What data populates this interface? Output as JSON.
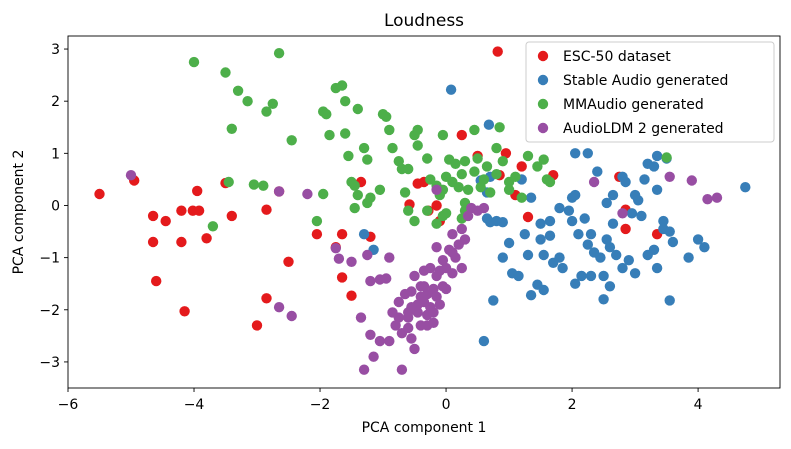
{
  "chart_data": {
    "type": "scatter",
    "title": "Loudness",
    "xlabel": "PCA component 1",
    "ylabel": "PCA component 2",
    "xlim": [
      -6,
      5.3
    ],
    "ylim": [
      -3.5,
      3.25
    ],
    "xticks": [
      -6,
      -4,
      -2,
      0,
      2,
      4
    ],
    "yticks": [
      -3,
      -2,
      -1,
      0,
      1,
      2,
      3
    ],
    "xtick_labels": [
      "−6",
      "−4",
      "−2",
      "0",
      "2",
      "4"
    ],
    "ytick_labels": [
      "−3",
      "−2",
      "−1",
      "0",
      "1",
      "2",
      "3"
    ],
    "legend_position": "top-right",
    "series": [
      {
        "name": "ESC-50 dataset",
        "color": "#e41a1c",
        "points": [
          [
            -5.5,
            0.22
          ],
          [
            -4.95,
            0.48
          ],
          [
            -4.65,
            -0.2
          ],
          [
            -4.45,
            -0.3
          ],
          [
            -4.2,
            -0.1
          ],
          [
            -4.65,
            -0.7
          ],
          [
            -4.2,
            -0.7
          ],
          [
            -4.02,
            -0.1
          ],
          [
            -3.92,
            -0.1
          ],
          [
            -3.95,
            0.28
          ],
          [
            -3.8,
            -0.63
          ],
          [
            -3.5,
            0.43
          ],
          [
            -3.4,
            -0.2
          ],
          [
            -2.85,
            -0.08
          ],
          [
            -2.65,
            0.27
          ],
          [
            -4.6,
            -1.45
          ],
          [
            -4.15,
            -2.03
          ],
          [
            -2.85,
            -1.78
          ],
          [
            -3.0,
            -2.3
          ],
          [
            -2.5,
            -1.08
          ],
          [
            -2.05,
            -0.55
          ],
          [
            -1.75,
            -0.8
          ],
          [
            -1.65,
            -0.55
          ],
          [
            -1.65,
            -1.38
          ],
          [
            -1.5,
            -1.73
          ],
          [
            -1.35,
            0.45
          ],
          [
            -1.2,
            -0.6
          ],
          [
            -0.58,
            0.02
          ],
          [
            -0.45,
            0.42
          ],
          [
            -0.35,
            0.45
          ],
          [
            -0.28,
            -0.1
          ],
          [
            -0.15,
            0.0
          ],
          [
            -0.1,
            -0.3
          ],
          [
            0.25,
            1.35
          ],
          [
            0.5,
            0.95
          ],
          [
            0.85,
            0.58
          ],
          [
            0.95,
            1.0
          ],
          [
            1.2,
            0.75
          ],
          [
            1.1,
            0.2
          ],
          [
            0.82,
            2.95
          ],
          [
            1.7,
            0.58
          ],
          [
            2.75,
            0.55
          ],
          [
            2.85,
            -0.08
          ],
          [
            2.85,
            -0.45
          ],
          [
            3.35,
            -0.55
          ],
          [
            1.3,
            -0.22
          ]
        ]
      },
      {
        "name": "Stable Audio generated",
        "color": "#377eb8",
        "points": [
          [
            0.08,
            2.22
          ],
          [
            -1.3,
            -0.55
          ],
          [
            -1.15,
            -0.85
          ],
          [
            0.55,
            0.48
          ],
          [
            0.65,
            0.25
          ],
          [
            0.7,
            0.55
          ],
          [
            0.65,
            -0.25
          ],
          [
            0.7,
            -0.32
          ],
          [
            0.8,
            -0.3
          ],
          [
            0.9,
            -0.32
          ],
          [
            1.0,
            -0.72
          ],
          [
            0.9,
            -1.0
          ],
          [
            1.05,
            -1.3
          ],
          [
            1.15,
            -1.35
          ],
          [
            1.25,
            -0.55
          ],
          [
            1.3,
            -0.95
          ],
          [
            1.5,
            -0.65
          ],
          [
            1.55,
            -0.95
          ],
          [
            1.65,
            -0.58
          ],
          [
            1.7,
            -1.1
          ],
          [
            1.8,
            -1.0
          ],
          [
            1.85,
            -1.2
          ],
          [
            1.45,
            -1.52
          ],
          [
            1.55,
            -1.62
          ],
          [
            0.68,
            1.55
          ],
          [
            1.2,
            0.5
          ],
          [
            1.35,
            0.15
          ],
          [
            1.5,
            -0.35
          ],
          [
            1.65,
            -0.3
          ],
          [
            1.8,
            -0.05
          ],
          [
            1.95,
            -0.1
          ],
          [
            2.0,
            0.15
          ],
          [
            2.05,
            0.2
          ],
          [
            2.0,
            -0.3
          ],
          [
            2.1,
            -0.55
          ],
          [
            2.2,
            -0.25
          ],
          [
            2.3,
            -0.55
          ],
          [
            2.25,
            -0.75
          ],
          [
            2.35,
            -0.9
          ],
          [
            2.45,
            -1.0
          ],
          [
            2.55,
            -0.65
          ],
          [
            2.6,
            -0.8
          ],
          [
            2.65,
            -0.35
          ],
          [
            2.7,
            -0.95
          ],
          [
            2.8,
            -1.2
          ],
          [
            2.9,
            -1.05
          ],
          [
            2.95,
            -0.15
          ],
          [
            2.55,
            0.05
          ],
          [
            2.65,
            0.2
          ],
          [
            2.85,
            0.45
          ],
          [
            2.4,
            0.65
          ],
          [
            2.25,
            1.0
          ],
          [
            2.05,
            1.0
          ],
          [
            2.5,
            -1.35
          ],
          [
            2.3,
            -1.35
          ],
          [
            2.15,
            -1.35
          ],
          [
            2.05,
            -1.5
          ],
          [
            2.6,
            -1.55
          ],
          [
            2.5,
            -1.8
          ],
          [
            3.0,
            0.2
          ],
          [
            3.15,
            0.5
          ],
          [
            3.2,
            0.8
          ],
          [
            3.35,
            0.95
          ],
          [
            3.3,
            0.75
          ],
          [
            3.5,
            0.9
          ],
          [
            3.35,
            0.3
          ],
          [
            3.45,
            -0.3
          ],
          [
            3.45,
            -0.45
          ],
          [
            3.55,
            -0.5
          ],
          [
            3.6,
            -0.7
          ],
          [
            3.3,
            -0.85
          ],
          [
            3.35,
            -1.2
          ],
          [
            3.55,
            -1.82
          ],
          [
            3.85,
            -1.0
          ],
          [
            4.0,
            -0.65
          ],
          [
            4.1,
            -0.8
          ],
          [
            4.75,
            0.35
          ],
          [
            2.8,
            0.55
          ],
          [
            3.1,
            -0.2
          ],
          [
            0.6,
            -2.6
          ],
          [
            0.75,
            -1.82
          ],
          [
            1.35,
            -1.72
          ],
          [
            3.2,
            -0.95
          ],
          [
            3.0,
            -1.3
          ],
          [
            3.05,
            0.1
          ]
        ]
      },
      {
        "name": "MMAudio generated",
        "color": "#4daf4a",
        "points": [
          [
            -2.65,
            2.92
          ],
          [
            -4.0,
            2.75
          ],
          [
            -3.5,
            2.55
          ],
          [
            -3.3,
            2.2
          ],
          [
            -3.15,
            2.0
          ],
          [
            -2.75,
            1.95
          ],
          [
            -2.85,
            1.8
          ],
          [
            -3.4,
            1.47
          ],
          [
            -2.45,
            1.25
          ],
          [
            -3.45,
            0.45
          ],
          [
            -3.05,
            0.4
          ],
          [
            -2.9,
            0.38
          ],
          [
            -2.05,
            -0.3
          ],
          [
            -1.95,
            0.22
          ],
          [
            -1.95,
            1.8
          ],
          [
            -1.9,
            1.75
          ],
          [
            -1.85,
            1.35
          ],
          [
            -1.75,
            2.25
          ],
          [
            -1.65,
            2.3
          ],
          [
            -1.6,
            2.0
          ],
          [
            -1.6,
            1.38
          ],
          [
            -1.55,
            0.95
          ],
          [
            -1.5,
            0.45
          ],
          [
            -1.45,
            0.38
          ],
          [
            -1.4,
            0.2
          ],
          [
            -1.45,
            -0.05
          ],
          [
            -1.4,
            1.85
          ],
          [
            -1.3,
            1.1
          ],
          [
            -1.25,
            0.88
          ],
          [
            -1.2,
            0.15
          ],
          [
            -1.25,
            0.05
          ],
          [
            -1.05,
            0.3
          ],
          [
            -1.0,
            1.75
          ],
          [
            -0.95,
            1.7
          ],
          [
            -0.9,
            1.45
          ],
          [
            -0.85,
            1.1
          ],
          [
            -0.75,
            0.85
          ],
          [
            -0.7,
            0.7
          ],
          [
            -0.65,
            0.25
          ],
          [
            -0.6,
            0.7
          ],
          [
            -0.5,
            1.35
          ],
          [
            -0.45,
            1.15
          ],
          [
            -0.3,
            0.9
          ],
          [
            -0.25,
            0.5
          ],
          [
            -0.15,
            0.38
          ],
          [
            -0.1,
            0.2
          ],
          [
            -0.05,
            0.3
          ],
          [
            0.0,
            0.55
          ],
          [
            0.05,
            0.88
          ],
          [
            0.1,
            0.45
          ],
          [
            0.15,
            0.8
          ],
          [
            0.2,
            0.35
          ],
          [
            0.25,
            0.6
          ],
          [
            0.3,
            0.85
          ],
          [
            0.35,
            0.3
          ],
          [
            0.45,
            0.65
          ],
          [
            0.5,
            0.9
          ],
          [
            0.55,
            0.35
          ],
          [
            0.6,
            0.5
          ],
          [
            0.65,
            0.75
          ],
          [
            0.7,
            0.25
          ],
          [
            0.8,
            0.6
          ],
          [
            0.9,
            0.85
          ],
          [
            1.0,
            0.45
          ],
          [
            1.1,
            0.55
          ],
          [
            1.2,
            0.15
          ],
          [
            1.3,
            0.95
          ],
          [
            1.45,
            0.75
          ],
          [
            1.55,
            0.88
          ],
          [
            1.6,
            0.5
          ],
          [
            1.65,
            0.45
          ],
          [
            -0.5,
            -0.3
          ],
          [
            -0.6,
            -0.1
          ],
          [
            -0.3,
            -0.1
          ],
          [
            -0.05,
            -0.2
          ],
          [
            0.3,
            0.05
          ],
          [
            0.0,
            -0.15
          ],
          [
            -0.15,
            -0.35
          ],
          [
            0.3,
            -0.1
          ],
          [
            3.5,
            0.92
          ],
          [
            -3.7,
            -0.4
          ],
          [
            -0.45,
            1.45
          ],
          [
            0.45,
            1.45
          ],
          [
            0.8,
            1.1
          ],
          [
            -0.05,
            1.35
          ],
          [
            0.85,
            1.5
          ],
          [
            1.0,
            0.3
          ],
          [
            0.25,
            -0.25
          ]
        ]
      },
      {
        "name": "AudioLDM 2 generated",
        "color": "#984ea3",
        "points": [
          [
            -5.0,
            0.58
          ],
          [
            -2.65,
            0.27
          ],
          [
            -2.2,
            0.22
          ],
          [
            -2.65,
            -1.95
          ],
          [
            -2.45,
            -2.12
          ],
          [
            -1.75,
            -0.82
          ],
          [
            -1.7,
            -1.02
          ],
          [
            -1.5,
            -1.08
          ],
          [
            -1.25,
            -0.95
          ],
          [
            -1.2,
            -1.45
          ],
          [
            -1.35,
            -2.15
          ],
          [
            -1.3,
            -3.15
          ],
          [
            -1.2,
            -2.48
          ],
          [
            -1.15,
            -2.9
          ],
          [
            -1.05,
            -1.42
          ],
          [
            -0.95,
            -1.4
          ],
          [
            -0.9,
            -1.0
          ],
          [
            -0.85,
            -2.05
          ],
          [
            -0.8,
            -2.3
          ],
          [
            -0.75,
            -1.85
          ],
          [
            -0.7,
            -2.45
          ],
          [
            -0.7,
            -3.15
          ],
          [
            -0.65,
            -1.7
          ],
          [
            -0.6,
            -2.15
          ],
          [
            -0.55,
            -2.55
          ],
          [
            -0.5,
            -2.75
          ],
          [
            -0.45,
            -1.9
          ],
          [
            -0.4,
            -1.55
          ],
          [
            -0.35,
            -1.25
          ],
          [
            -0.35,
            -1.85
          ],
          [
            -0.3,
            -2.1
          ],
          [
            -0.25,
            -1.95
          ],
          [
            -0.2,
            -1.6
          ],
          [
            -0.15,
            -1.75
          ],
          [
            -0.1,
            -1.25
          ],
          [
            -0.05,
            -1.05
          ],
          [
            0.0,
            -1.2
          ],
          [
            0.05,
            -0.85
          ],
          [
            0.1,
            -0.9
          ],
          [
            0.15,
            -1.0
          ],
          [
            0.2,
            -0.75
          ],
          [
            0.25,
            -1.2
          ],
          [
            0.3,
            -0.65
          ],
          [
            0.25,
            -0.45
          ],
          [
            0.35,
            -0.2
          ],
          [
            0.4,
            -0.05
          ],
          [
            0.5,
            -0.1
          ],
          [
            0.6,
            -0.05
          ],
          [
            -0.3,
            -2.3
          ],
          [
            -0.2,
            -2.05
          ],
          [
            -0.55,
            -1.65
          ],
          [
            -0.9,
            -2.6
          ],
          [
            -1.05,
            -2.6
          ],
          [
            -0.4,
            -2.3
          ],
          [
            -0.6,
            -2.05
          ],
          [
            -0.15,
            -1.35
          ],
          [
            -0.35,
            -1.55
          ],
          [
            -0.1,
            -1.9
          ],
          [
            -0.5,
            -1.35
          ],
          [
            0.0,
            -1.6
          ],
          [
            -0.25,
            -1.2
          ],
          [
            -0.6,
            -2.35
          ],
          [
            -0.75,
            -2.15
          ],
          [
            -0.45,
            -2.05
          ],
          [
            -0.3,
            -1.7
          ],
          [
            -0.2,
            -2.25
          ],
          [
            -0.05,
            -1.55
          ],
          [
            0.1,
            -1.3
          ],
          [
            -0.55,
            -1.95
          ],
          [
            -0.4,
            -1.75
          ],
          [
            -0.15,
            -0.8
          ],
          [
            -0.15,
            0.3
          ],
          [
            2.35,
            0.45
          ],
          [
            2.8,
            -0.15
          ],
          [
            3.55,
            0.55
          ],
          [
            3.9,
            0.48
          ],
          [
            4.15,
            0.12
          ],
          [
            4.3,
            0.15
          ],
          [
            0.1,
            -0.55
          ]
        ]
      }
    ]
  }
}
